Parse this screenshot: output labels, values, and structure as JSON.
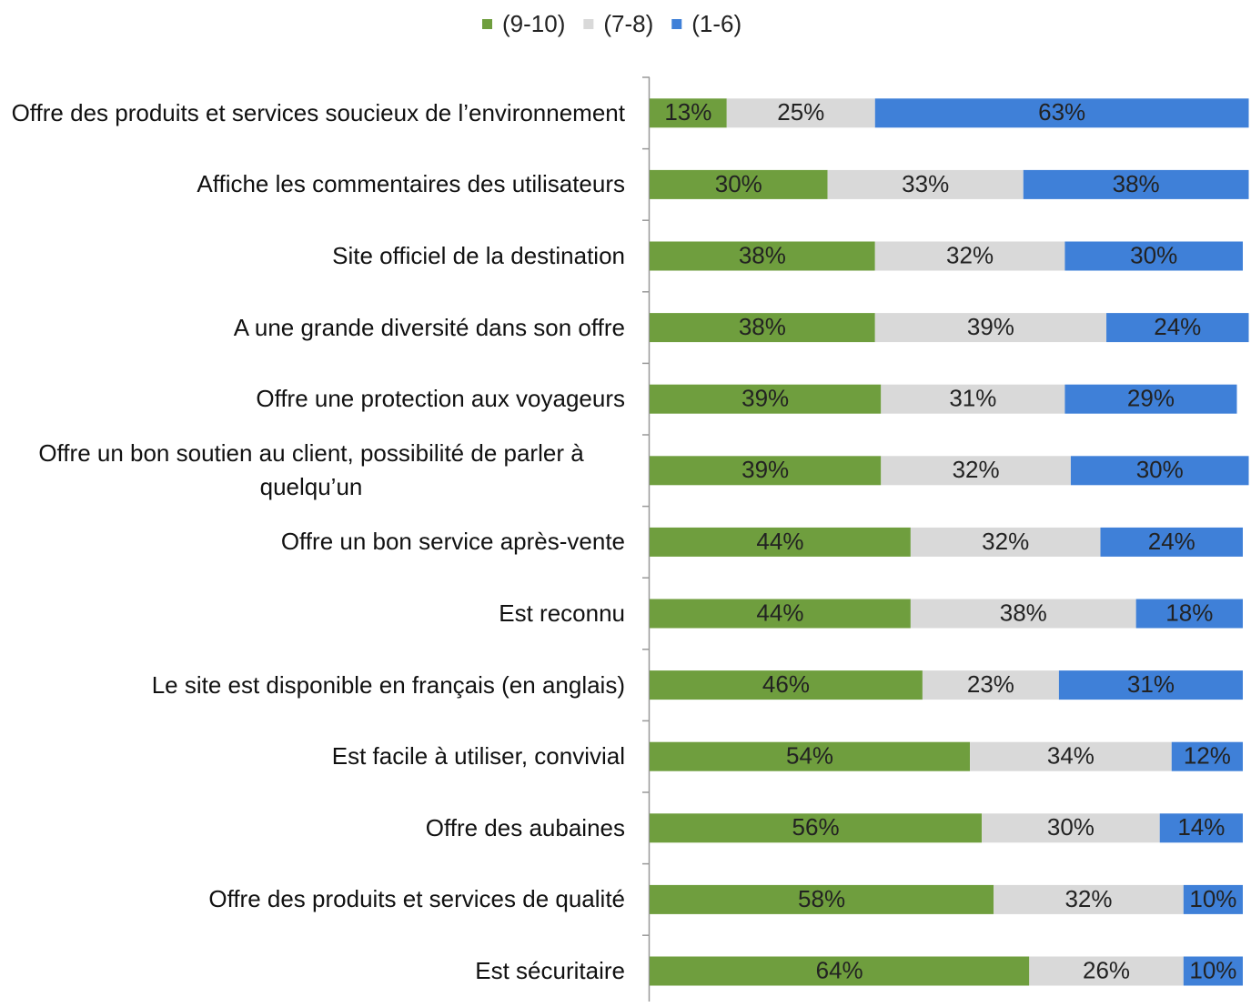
{
  "chart_data": {
    "type": "stacked-bar-horizontal",
    "categories": [
      "Offre des produits et services soucieux de l’environnement",
      "Affiche les commentaires des utilisateurs",
      "Site officiel de la destination",
      "A une grande diversité dans son offre",
      "Offre une protection aux voyageurs",
      "Offre un bon soutien au client, possibilité de parler à quelqu’un",
      "Offre un bon service après-vente",
      "Est reconnu",
      "Le site est disponible en français (en anglais)",
      "Est facile à utiliser, convivial",
      "Offre des aubaines",
      "Offre des produits et services de qualité",
      "Est sécuritaire"
    ],
    "series": [
      {
        "name": "(9-10)",
        "color": "#6f9e3e",
        "values": [
          13,
          30,
          38,
          38,
          39,
          39,
          44,
          44,
          46,
          54,
          56,
          58,
          64
        ],
        "value_labels": [
          "13%",
          "30%",
          "38%",
          "38%",
          "39%",
          "39%",
          "44%",
          "44%",
          "46%",
          "54%",
          "56%",
          "58%",
          "64%"
        ]
      },
      {
        "name": "(7-8)",
        "color": "#d9d9d9",
        "values": [
          25,
          33,
          32,
          39,
          31,
          32,
          32,
          38,
          23,
          34,
          30,
          32,
          26
        ],
        "value_labels": [
          "25%",
          "33%",
          "32%",
          "39%",
          "31%",
          "32%",
          "32%",
          "38%",
          "23%",
          "34%",
          "30%",
          "32%",
          "26%"
        ]
      },
      {
        "name": "(1-6)",
        "color": "#3f80d8",
        "values": [
          63,
          38,
          30,
          24,
          29,
          30,
          24,
          18,
          31,
          12,
          14,
          10,
          10
        ],
        "value_labels": [
          "63%",
          "38%",
          "30%",
          "24%",
          "29%",
          "30%",
          "24%",
          "18%",
          "31%",
          "12%",
          "14%",
          "10%",
          "10%"
        ]
      }
    ],
    "xlim": [
      0,
      100
    ],
    "legend": "top"
  }
}
